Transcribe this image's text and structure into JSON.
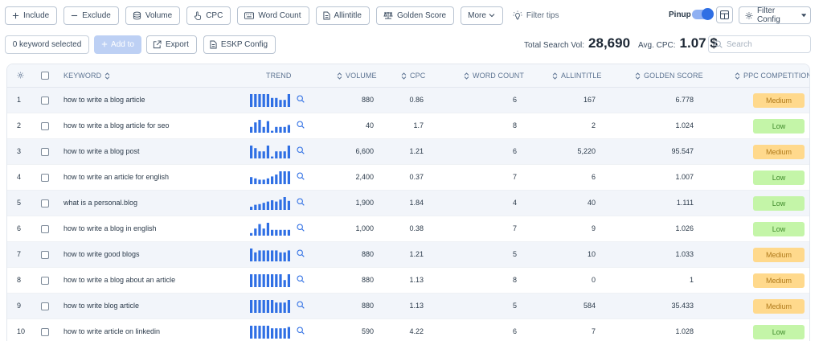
{
  "toolbar": {
    "include": "Include",
    "exclude": "Exclude",
    "volume": "Volume",
    "cpc": "CPC",
    "word_count": "Word Count",
    "allintitle": "Allintitle",
    "golden_score": "Golden Score",
    "more": "More",
    "filter_tips": "Filter tips",
    "pinup": "Pinup",
    "pinup_on": true,
    "filter_config": "Filter Config"
  },
  "actions": {
    "keyword_selected": "0 keyword selected",
    "add_to": "Add to",
    "export": "Export",
    "eskp_config": "ESKP Config"
  },
  "stats": {
    "total_search_vol_label": "Total Search Vol:",
    "total_search_vol": "28,690",
    "avg_cpc_label": "Avg. CPC:",
    "avg_cpc": "1.07 $"
  },
  "search": {
    "placeholder": "Search"
  },
  "colors": {
    "accent": "#2f6fe4",
    "trend_bar": "#2f6fe4",
    "medium": "#ffd98c",
    "low": "#c4f5a8"
  },
  "table": {
    "headers": {
      "keyword": "KEYWORD",
      "trend": "TREND",
      "volume": "VOLUME",
      "cpc": "CPC",
      "word_count": "WORD COUNT",
      "allintitle": "ALLINTITLE",
      "golden_score": "GOLDEN SCORE",
      "ppc_competition": "PPC COMPETITION"
    },
    "rows": [
      {
        "index": "1",
        "keyword": "how to write a blog article",
        "trend": [
          1,
          1,
          1,
          1,
          1,
          0.7,
          0.7,
          0.55,
          0.55,
          1
        ],
        "volume": "880",
        "cpc": "0.86",
        "word_count": "6",
        "allintitle": "167",
        "golden_score": "6.778",
        "ppc": "Medium"
      },
      {
        "index": "2",
        "keyword": "how to write a blog article for seo",
        "trend": [
          0.45,
          0.8,
          1,
          0.45,
          0.9,
          0.15,
          0.45,
          0.45,
          0.45,
          0.6
        ],
        "volume": "40",
        "cpc": "1.7",
        "word_count": "8",
        "allintitle": "2",
        "golden_score": "1.024",
        "ppc": "Low"
      },
      {
        "index": "3",
        "keyword": "how to write a blog post",
        "trend": [
          1,
          0.8,
          0.55,
          0.55,
          1,
          0.15,
          0.55,
          0.55,
          0.55,
          1
        ],
        "volume": "6,600",
        "cpc": "1.21",
        "word_count": "6",
        "allintitle": "5,220",
        "golden_score": "95.547",
        "ppc": "Medium"
      },
      {
        "index": "4",
        "keyword": "how to write an article for english",
        "trend": [
          0.55,
          0.45,
          0.35,
          0.35,
          0.45,
          0.6,
          0.75,
          1,
          1,
          1
        ],
        "volume": "2,400",
        "cpc": "0.37",
        "word_count": "7",
        "allintitle": "6",
        "golden_score": "1.007",
        "ppc": "Low"
      },
      {
        "index": "5",
        "keyword": "what is a personal.blog",
        "trend": [
          0.25,
          0.4,
          0.45,
          0.55,
          0.65,
          0.75,
          0.65,
          0.8,
          1,
          0.7
        ],
        "volume": "1,900",
        "cpc": "1.84",
        "word_count": "4",
        "allintitle": "40",
        "golden_score": "1.111",
        "ppc": "Low"
      },
      {
        "index": "6",
        "keyword": "how to write a blog in english",
        "trend": [
          0.2,
          0.55,
          0.9,
          0.55,
          1,
          0.45,
          0.45,
          0.45,
          0.45,
          0.45
        ],
        "volume": "1,000",
        "cpc": "0.38",
        "word_count": "7",
        "allintitle": "9",
        "golden_score": "1.026",
        "ppc": "Low"
      },
      {
        "index": "7",
        "keyword": "how to write good blogs",
        "trend": [
          1,
          0.7,
          0.85,
          0.85,
          0.85,
          0.85,
          0.85,
          0.7,
          0.7,
          0.85
        ],
        "volume": "880",
        "cpc": "1.21",
        "word_count": "5",
        "allintitle": "10",
        "golden_score": "1.033",
        "ppc": "Medium"
      },
      {
        "index": "8",
        "keyword": "how to write a blog about an article",
        "trend": [
          1,
          1,
          1,
          1,
          1,
          1,
          1,
          1,
          0.55,
          1
        ],
        "volume": "880",
        "cpc": "1.13",
        "word_count": "8",
        "allintitle": "0",
        "golden_score": "1",
        "ppc": "Medium"
      },
      {
        "index": "9",
        "keyword": "how to write blog article",
        "trend": [
          1,
          1,
          1,
          1,
          1,
          1,
          0.8,
          0.8,
          0.8,
          1
        ],
        "volume": "880",
        "cpc": "1.13",
        "word_count": "5",
        "allintitle": "584",
        "golden_score": "35.433",
        "ppc": "Medium"
      },
      {
        "index": "10",
        "keyword": "how to write article on linkedin",
        "trend": [
          1,
          1,
          1,
          1,
          1,
          0.8,
          0.8,
          0.8,
          0.8,
          0.9
        ],
        "volume": "590",
        "cpc": "4.22",
        "word_count": "6",
        "allintitle": "7",
        "golden_score": "1.028",
        "ppc": "Low"
      }
    ]
  }
}
